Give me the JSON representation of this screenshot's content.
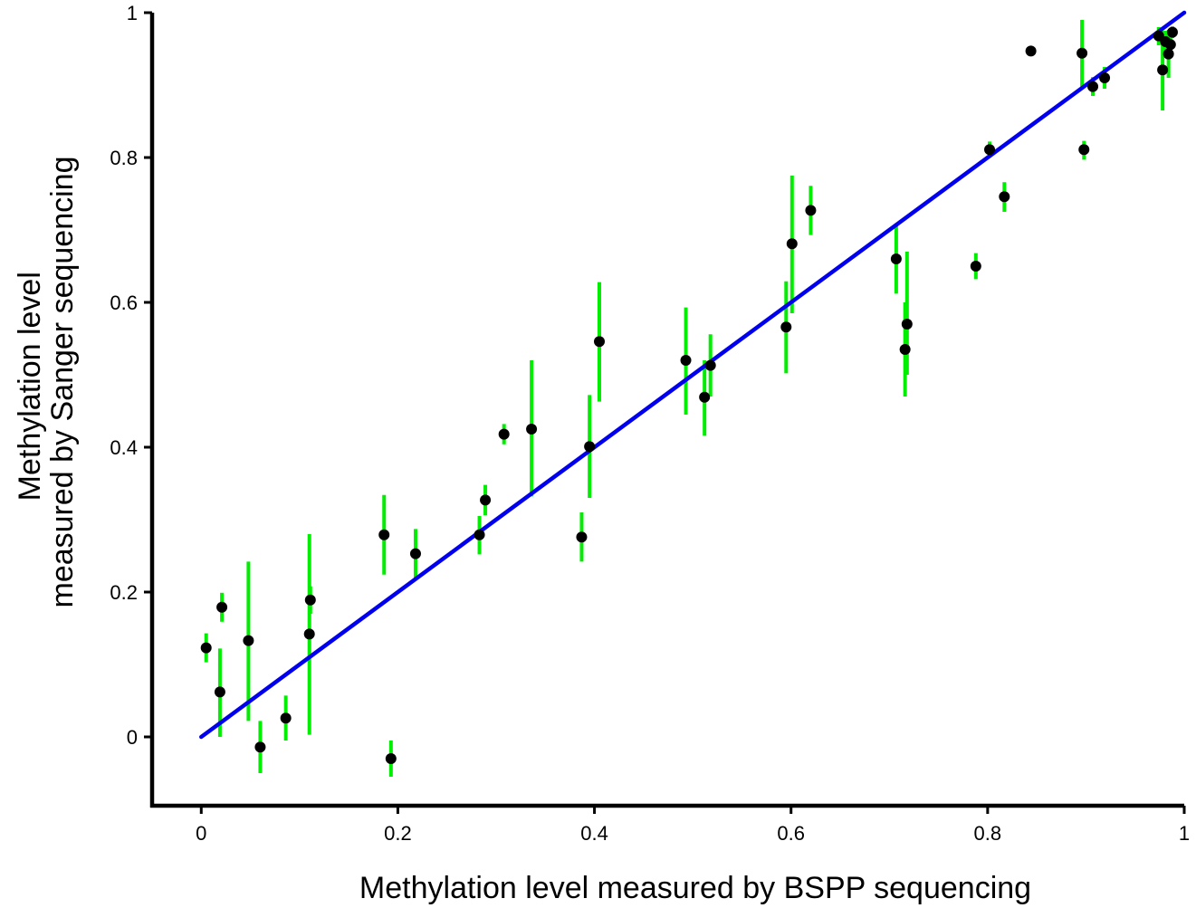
{
  "chart_data": {
    "type": "scatter",
    "title": "",
    "xlabel": "Methylation level measured by BSPP sequencing",
    "ylabel_lines": [
      "Methylation level",
      "measured by Sanger sequencing"
    ],
    "xlim": [
      -0.05,
      1.0
    ],
    "ylim": [
      -0.095,
      1.0
    ],
    "x_ticks": [
      0,
      0.2,
      0.4,
      0.6,
      0.8,
      1
    ],
    "x_tick_labels": [
      "0",
      "0.2",
      "0.4",
      "0.6",
      "0.8",
      "1"
    ],
    "y_ticks": [
      0,
      0.2,
      0.4,
      0.6,
      0.8,
      1
    ],
    "y_tick_labels": [
      "0",
      "0.2",
      "0.4",
      "0.6",
      "0.8",
      "1"
    ],
    "grid": false,
    "legend": "none",
    "colors": {
      "points": "#000000",
      "error_bars": "#00ee00",
      "fit_line": "#0000ee",
      "axes": "#000000"
    },
    "fit_line": {
      "x": [
        0,
        1
      ],
      "y": [
        0,
        1
      ]
    },
    "points": [
      {
        "x": 0.005,
        "y": 0.123,
        "lo": 0.103,
        "hi": 0.143
      },
      {
        "x": 0.019,
        "y": 0.062,
        "lo": 0.0,
        "hi": 0.122
      },
      {
        "x": 0.021,
        "y": 0.179,
        "lo": 0.159,
        "hi": 0.199
      },
      {
        "x": 0.048,
        "y": 0.133,
        "lo": 0.022,
        "hi": 0.242
      },
      {
        "x": 0.06,
        "y": -0.014,
        "lo": -0.05,
        "hi": 0.022
      },
      {
        "x": 0.086,
        "y": 0.026,
        "lo": -0.005,
        "hi": 0.057
      },
      {
        "x": 0.11,
        "y": 0.142,
        "lo": 0.003,
        "hi": 0.28
      },
      {
        "x": 0.111,
        "y": 0.189,
        "lo": 0.17,
        "hi": 0.208
      },
      {
        "x": 0.186,
        "y": 0.279,
        "lo": 0.224,
        "hi": 0.334
      },
      {
        "x": 0.193,
        "y": -0.03,
        "lo": -0.055,
        "hi": -0.005
      },
      {
        "x": 0.218,
        "y": 0.253,
        "lo": 0.219,
        "hi": 0.287
      },
      {
        "x": 0.283,
        "y": 0.279,
        "lo": 0.252,
        "hi": 0.305
      },
      {
        "x": 0.289,
        "y": 0.327,
        "lo": 0.306,
        "hi": 0.348
      },
      {
        "x": 0.308,
        "y": 0.418,
        "lo": 0.404,
        "hi": 0.432
      },
      {
        "x": 0.336,
        "y": 0.425,
        "lo": 0.332,
        "hi": 0.52
      },
      {
        "x": 0.387,
        "y": 0.276,
        "lo": 0.242,
        "hi": 0.31
      },
      {
        "x": 0.395,
        "y": 0.401,
        "lo": 0.33,
        "hi": 0.472
      },
      {
        "x": 0.405,
        "y": 0.546,
        "lo": 0.463,
        "hi": 0.628
      },
      {
        "x": 0.493,
        "y": 0.52,
        "lo": 0.445,
        "hi": 0.593
      },
      {
        "x": 0.512,
        "y": 0.469,
        "lo": 0.416,
        "hi": 0.52
      },
      {
        "x": 0.518,
        "y": 0.513,
        "lo": 0.47,
        "hi": 0.556
      },
      {
        "x": 0.595,
        "y": 0.566,
        "lo": 0.502,
        "hi": 0.629
      },
      {
        "x": 0.601,
        "y": 0.681,
        "lo": 0.585,
        "hi": 0.775
      },
      {
        "x": 0.62,
        "y": 0.727,
        "lo": 0.693,
        "hi": 0.761
      },
      {
        "x": 0.707,
        "y": 0.66,
        "lo": 0.612,
        "hi": 0.708
      },
      {
        "x": 0.716,
        "y": 0.535,
        "lo": 0.47,
        "hi": 0.6
      },
      {
        "x": 0.718,
        "y": 0.57,
        "lo": 0.5,
        "hi": 0.67
      },
      {
        "x": 0.788,
        "y": 0.65,
        "lo": 0.632,
        "hi": 0.668
      },
      {
        "x": 0.802,
        "y": 0.811,
        "lo": 0.8,
        "hi": 0.822
      },
      {
        "x": 0.817,
        "y": 0.746,
        "lo": 0.725,
        "hi": 0.766
      },
      {
        "x": 0.844,
        "y": 0.947,
        "lo": 0.947,
        "hi": 0.947
      },
      {
        "x": 0.896,
        "y": 0.944,
        "lo": 0.898,
        "hi": 0.99
      },
      {
        "x": 0.898,
        "y": 0.811,
        "lo": 0.797,
        "hi": 0.823
      },
      {
        "x": 0.907,
        "y": 0.898,
        "lo": 0.885,
        "hi": 0.911
      },
      {
        "x": 0.919,
        "y": 0.91,
        "lo": 0.895,
        "hi": 0.925
      },
      {
        "x": 0.974,
        "y": 0.968,
        "lo": 0.955,
        "hi": 0.98
      },
      {
        "x": 0.978,
        "y": 0.921,
        "lo": 0.865,
        "hi": 0.975
      },
      {
        "x": 0.981,
        "y": 0.96,
        "lo": 0.945,
        "hi": 0.975
      },
      {
        "x": 0.984,
        "y": 0.943,
        "lo": 0.91,
        "hi": 0.976
      },
      {
        "x": 0.986,
        "y": 0.956,
        "lo": 0.946,
        "hi": 0.966
      },
      {
        "x": 0.988,
        "y": 0.973,
        "lo": 0.965,
        "hi": 0.981
      }
    ]
  }
}
